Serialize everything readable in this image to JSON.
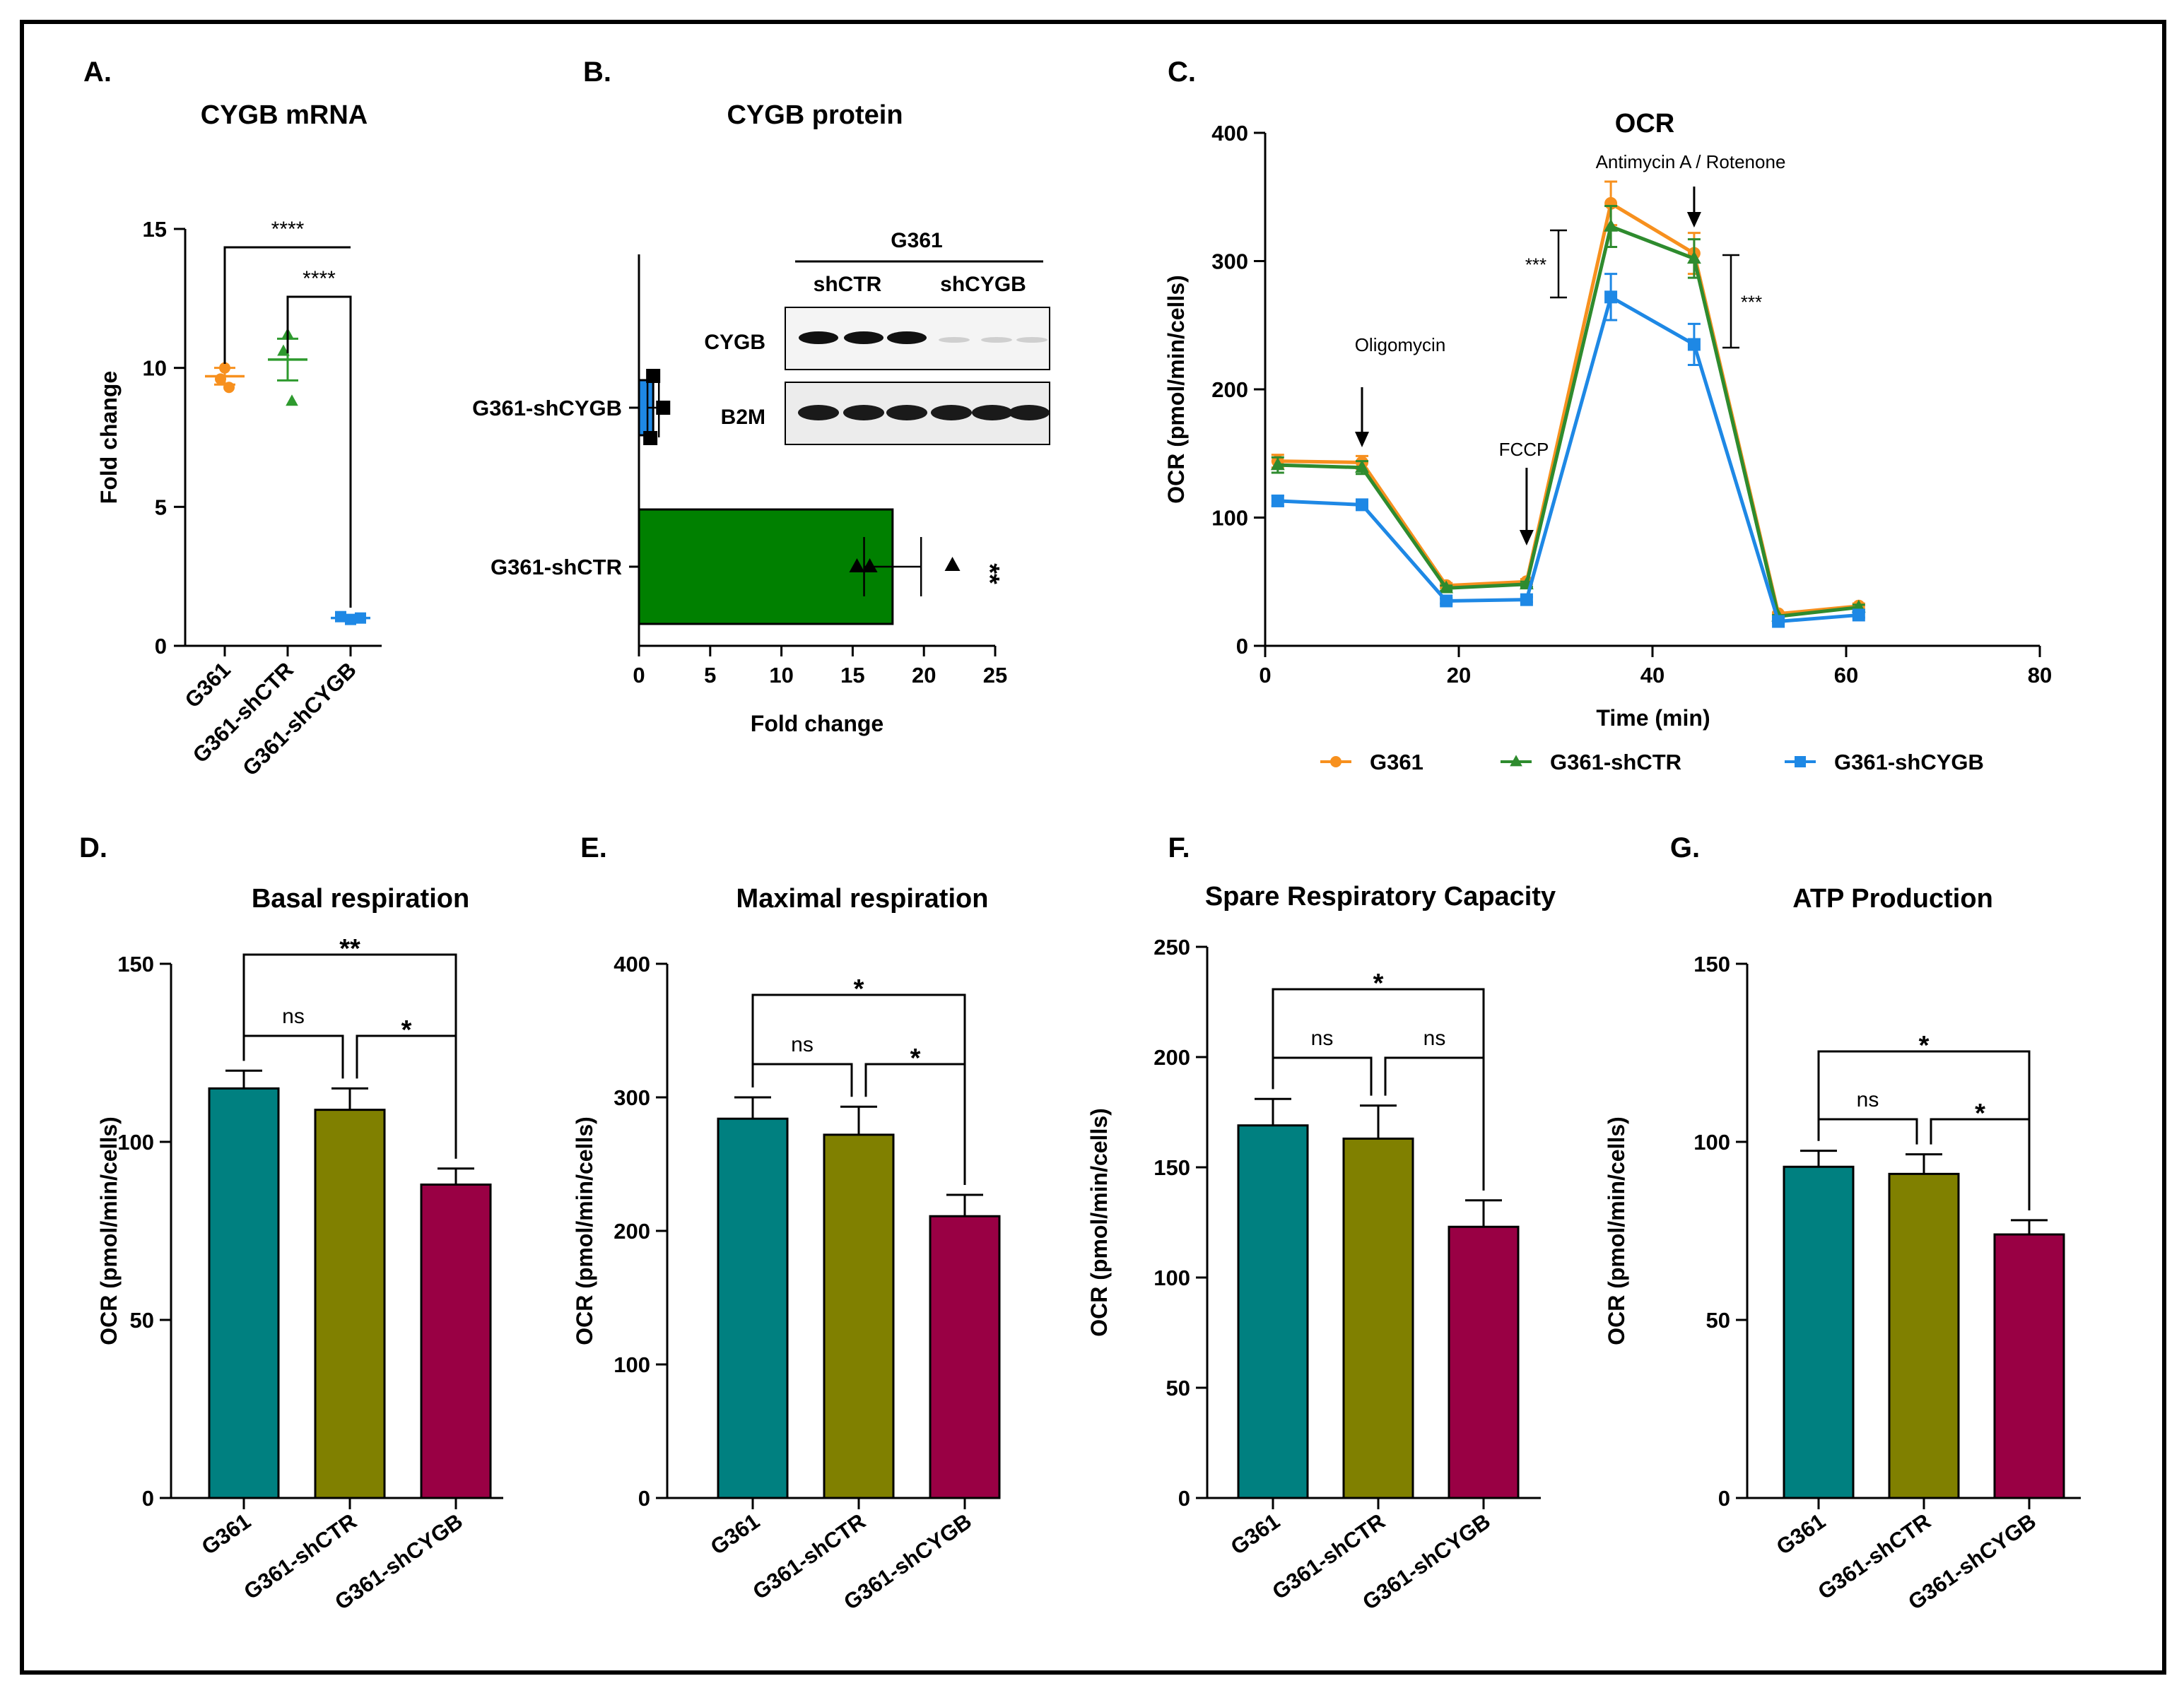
{
  "chart_data": [
    {
      "panel": "A.",
      "type": "scatter",
      "title": "CYGB mRNA",
      "ylabel": "Fold change",
      "ylim": [
        0,
        15
      ],
      "yticks": [
        0,
        5,
        10,
        15
      ],
      "categories": [
        "G361",
        "G361-shCTR",
        "G361-shCYGB"
      ],
      "points": [
        [
          10.0,
          9.6,
          9.3
        ],
        [
          11.2,
          10.6,
          8.8
        ],
        [
          1.05,
          0.95,
          1.0
        ]
      ],
      "means": [
        9.7,
        10.3,
        1.0
      ],
      "sem": [
        0.3,
        0.75,
        0.05
      ],
      "colors": [
        "#F7901E",
        "#2E9A2E",
        "#1E88E5"
      ],
      "brackets": [
        {
          "from": 0,
          "to": 2,
          "label": "****"
        },
        {
          "from": 1,
          "to": 2,
          "label": "****"
        }
      ]
    },
    {
      "panel": "B.",
      "type": "bar",
      "orientation": "horizontal",
      "title": "CYGB protein",
      "xlabel": "Fold change",
      "xlim": [
        0,
        25
      ],
      "xticks": [
        0,
        5,
        10,
        15,
        20,
        25
      ],
      "categories": [
        "G361-shCYGB",
        "G361-shCTR"
      ],
      "values": [
        1.0,
        17.8
      ],
      "sem": [
        0.4,
        2.0
      ],
      "points": [
        [
          1.0,
          1.7,
          0.8
        ],
        [
          15.3,
          16.2,
          22.0
        ]
      ],
      "colors": [
        "#1E88E5",
        "#008000"
      ],
      "significance": "**",
      "blot": {
        "cell_line": "G361",
        "groups": [
          "shCTR",
          "shCYGB"
        ],
        "bands": [
          "CYGB",
          "B2M"
        ]
      }
    },
    {
      "panel": "C.",
      "type": "line",
      "title": "OCR",
      "xlabel": "Time (min)",
      "ylabel": "OCR (pmol/min/cells)",
      "xlim": [
        0,
        80
      ],
      "ylim": [
        0,
        400
      ],
      "xticks": [
        0,
        20,
        40,
        60,
        80
      ],
      "yticks": [
        0,
        100,
        200,
        300,
        400
      ],
      "x": [
        1.3,
        10,
        18.7,
        27,
        35.7,
        44.3,
        53,
        61.3
      ],
      "series": [
        {
          "name": "G361",
          "color": "#F7901E",
          "marker": "circle",
          "values": [
            144,
            143,
            47,
            50,
            345,
            306,
            25,
            31
          ],
          "err": [
            5,
            5,
            2,
            2,
            17,
            16,
            1,
            2
          ]
        },
        {
          "name": "G361-shCTR",
          "color": "#2E8B2E",
          "marker": "triangle",
          "values": [
            141,
            139,
            45,
            48,
            327,
            302,
            23,
            30
          ],
          "err": [
            6,
            5,
            2,
            2,
            16,
            15,
            1,
            2
          ]
        },
        {
          "name": "G361-shCYGB",
          "color": "#1E88E5",
          "marker": "square",
          "values": [
            113,
            110,
            35,
            36,
            272,
            235,
            19,
            24
          ],
          "err": [
            4,
            4,
            2,
            2,
            18,
            16,
            1,
            2
          ]
        }
      ],
      "annotations": [
        {
          "label": "Oligomycin",
          "x": 10
        },
        {
          "label": "FCCP",
          "x": 27
        },
        {
          "label": "Antimycin A / Rotenone",
          "x": 44.3
        }
      ],
      "significance": [
        "***",
        "***"
      ]
    },
    {
      "panel": "D.",
      "type": "bar",
      "title": "Basal respiration",
      "ylabel": "OCR (pmol/min/cells)",
      "ylim": [
        0,
        150
      ],
      "yticks": [
        0,
        50,
        100,
        150
      ],
      "categories": [
        "G361",
        "G361-shCTR",
        "G361-shCYGB"
      ],
      "values": [
        115,
        109,
        88
      ],
      "err": [
        5,
        6,
        4.5
      ],
      "colors": [
        "#008080",
        "#808000",
        "#990044"
      ],
      "brackets": [
        {
          "from": 0,
          "to": 2,
          "label": "**"
        },
        {
          "from": 0,
          "to": 1,
          "label": "ns"
        },
        {
          "from": 1,
          "to": 2,
          "label": "*"
        }
      ]
    },
    {
      "panel": "E.",
      "type": "bar",
      "title": "Maximal respiration",
      "ylabel": "OCR (pmol/min/cells)",
      "ylim": [
        0,
        400
      ],
      "yticks": [
        0,
        100,
        200,
        300,
        400
      ],
      "categories": [
        "G361",
        "G361-shCTR",
        "G361-shCYGB"
      ],
      "values": [
        284,
        272,
        211
      ],
      "err": [
        16,
        21,
        16
      ],
      "colors": [
        "#008080",
        "#808000",
        "#990044"
      ],
      "brackets": [
        {
          "from": 0,
          "to": 2,
          "label": "*"
        },
        {
          "from": 0,
          "to": 1,
          "label": "ns"
        },
        {
          "from": 1,
          "to": 2,
          "label": "*"
        }
      ]
    },
    {
      "panel": "F.",
      "type": "bar",
      "title": "Spare Respiratory Capacity",
      "ylabel": "OCR (pmol/min/cells)",
      "ylim": [
        0,
        250
      ],
      "yticks": [
        0,
        50,
        100,
        150,
        200,
        250
      ],
      "categories": [
        "G361",
        "G361-shCTR",
        "G361-shCYGB"
      ],
      "values": [
        169,
        163,
        123
      ],
      "err": [
        12,
        15,
        12
      ],
      "colors": [
        "#008080",
        "#808000",
        "#990044"
      ],
      "brackets": [
        {
          "from": 0,
          "to": 2,
          "label": "*"
        },
        {
          "from": 0,
          "to": 1,
          "label": "ns"
        },
        {
          "from": 1,
          "to": 2,
          "label": "ns"
        }
      ]
    },
    {
      "panel": "G.",
      "type": "bar",
      "title": "ATP Production",
      "ylabel": "OCR (pmol/min/cells)",
      "ylim": [
        0,
        150
      ],
      "yticks": [
        0,
        50,
        100,
        150
      ],
      "categories": [
        "G361",
        "G361-shCTR",
        "G361-shCYGB"
      ],
      "values": [
        93,
        91,
        74
      ],
      "err": [
        4.5,
        5.5,
        4
      ],
      "colors": [
        "#008080",
        "#808000",
        "#990044"
      ],
      "brackets": [
        {
          "from": 0,
          "to": 2,
          "label": "*"
        },
        {
          "from": 0,
          "to": 1,
          "label": "ns"
        },
        {
          "from": 1,
          "to": 2,
          "label": "*"
        }
      ]
    }
  ]
}
